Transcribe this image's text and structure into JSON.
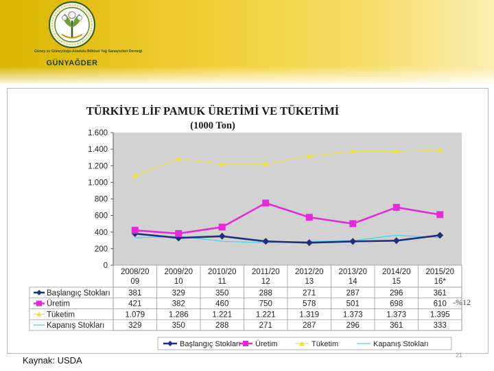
{
  "header": {
    "logo_ring_text": "Güney ve Güneydoğu Anadolu Bitkisel Yağ Sanayicileri Derneği",
    "logo_name": "GÜNYAĞDER"
  },
  "chart_data": {
    "type": "line",
    "title": "TÜRKİYE LİF PAMUK ÜRETİMİ VE TÜKETİMİ",
    "subtitle": "(1000 Ton)",
    "categories": [
      [
        "2008/20",
        "09"
      ],
      [
        "2009/20",
        "10"
      ],
      [
        "2010/20",
        "11"
      ],
      [
        "2011/20",
        "12"
      ],
      [
        "2012/20",
        "13"
      ],
      [
        "2013/20",
        "14"
      ],
      [
        "2014/20",
        "15"
      ],
      [
        "2015/20",
        "16*"
      ]
    ],
    "ylim": [
      0,
      1600
    ],
    "yticks": [
      0,
      200,
      400,
      600,
      800,
      1000,
      1200,
      1400,
      1600
    ],
    "ytick_labels": [
      "0",
      "200",
      "400",
      "600",
      "800",
      "1.000",
      "1.200",
      "1.400",
      "1.600"
    ],
    "grid": false,
    "legend": "bottom",
    "series": [
      {
        "name": "Başlangıç Stokları",
        "color": "#1f2f7a",
        "marker": "diamond",
        "values": [
          381,
          329,
          350,
          288,
          271,
          287,
          296,
          361
        ],
        "labels": [
          "381",
          "329",
          "350",
          "288",
          "271",
          "287",
          "296",
          "361"
        ]
      },
      {
        "name": "Üretim",
        "color": "#e329d8",
        "marker": "square",
        "values": [
          421,
          382,
          460,
          750,
          578,
          501,
          698,
          610
        ],
        "labels": [
          "421",
          "382",
          "460",
          "750",
          "578",
          "501",
          "698",
          "610"
        ]
      },
      {
        "name": "Tüketim",
        "color": "#ece24a",
        "marker": "triangle",
        "values": [
          1079,
          1286,
          1221,
          1221,
          1319,
          1373,
          1373,
          1395
        ],
        "labels": [
          "1.079",
          "1.286",
          "1.221",
          "1.221",
          "1.319",
          "1.373",
          "1.373",
          "1.395"
        ]
      },
      {
        "name": "Kapanış Stokları",
        "color": "#3fd7ee",
        "marker": "none",
        "values": [
          329,
          350,
          288,
          271,
          287,
          296,
          361,
          333
        ],
        "labels": [
          "329",
          "350",
          "288",
          "271",
          "287",
          "296",
          "361",
          "333"
        ]
      }
    ],
    "annotation": "-%12"
  },
  "footer": {
    "source": "Kaynak: USDA",
    "page_number": "21"
  }
}
